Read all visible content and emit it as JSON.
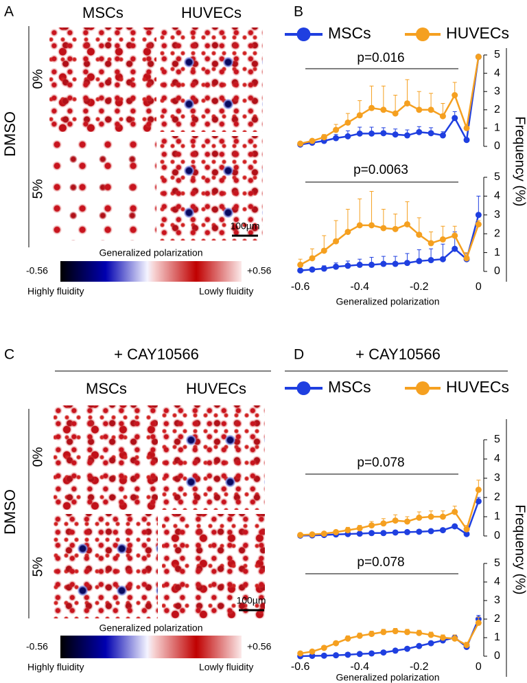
{
  "panel_a": {
    "letter": "A",
    "columns": [
      "MSCs",
      "HUVECs"
    ],
    "group": "DMSO",
    "rows": [
      "0%",
      "5%"
    ],
    "scale_bar": "100µm",
    "colorbar": {
      "title": "Generalized polarization",
      "min": "-0.56",
      "max": "+0.56",
      "low": "Highly fluidity",
      "high": "Lowly fluidity"
    }
  },
  "panel_b": {
    "letter": "B"
  },
  "panel_c": {
    "letter": "C",
    "treatment": "+ CAY10566",
    "columns": [
      "MSCs",
      "HUVECs"
    ],
    "group": "DMSO",
    "rows": [
      "0%",
      "5%"
    ],
    "scale_bar": "100µm",
    "colorbar": {
      "title": "Generalized polarization",
      "min": "-0.56",
      "max": "+0.56",
      "low": "Highly fluidity",
      "high": "Lowly fluidity"
    }
  },
  "panel_d": {
    "letter": "D",
    "treatment": "+ CAY10566"
  },
  "chart_data": [
    {
      "type": "line",
      "annotation": "p=0.016",
      "y_label": "Frequency (%)",
      "x": [
        -0.6,
        -0.56,
        -0.52,
        -0.48,
        -0.44,
        -0.4,
        -0.36,
        -0.32,
        -0.28,
        -0.24,
        -0.2,
        -0.16,
        -0.12,
        -0.08,
        -0.04,
        0
      ],
      "xlim": [
        -0.62,
        0.02
      ],
      "ylim": [
        0,
        5
      ],
      "yticks": [
        0,
        1,
        2,
        3,
        4,
        5
      ],
      "series": [
        {
          "name": "MSCs",
          "color": "#1f3fe0",
          "values": [
            0.1,
            0.2,
            0.3,
            0.45,
            0.55,
            0.7,
            0.7,
            0.72,
            0.65,
            0.6,
            0.78,
            0.72,
            0.6,
            1.55,
            0.35,
            4.9
          ],
          "errors": [
            0.05,
            0.1,
            0.15,
            0.2,
            0.3,
            0.35,
            0.35,
            0.3,
            0.3,
            0.3,
            0.3,
            0.3,
            0.2,
            0.35,
            0.1,
            0.1
          ]
        },
        {
          "name": "HUVECs",
          "color": "#f5a020",
          "values": [
            0.15,
            0.3,
            0.5,
            0.9,
            1.3,
            1.7,
            2.1,
            2.0,
            1.8,
            2.35,
            2.0,
            2.0,
            1.65,
            2.8,
            1.0,
            4.9
          ],
          "errors": [
            0.05,
            0.1,
            0.15,
            0.3,
            0.5,
            0.8,
            1.2,
            1.3,
            1.0,
            1.3,
            1.0,
            0.9,
            0.7,
            0.7,
            0.2,
            0.1
          ]
        }
      ]
    },
    {
      "type": "line",
      "annotation": "p=0.0063",
      "x_label": "Generalized polarization",
      "x": [
        -0.6,
        -0.56,
        -0.52,
        -0.48,
        -0.44,
        -0.4,
        -0.36,
        -0.32,
        -0.28,
        -0.24,
        -0.2,
        -0.16,
        -0.12,
        -0.08,
        -0.04,
        0
      ],
      "xlim": [
        -0.62,
        0.02
      ],
      "xticks": [
        -0.6,
        -0.4,
        -0.2,
        0
      ],
      "ylim": [
        0,
        5
      ],
      "yticks": [
        0,
        1,
        2,
        3,
        4,
        5
      ],
      "series": [
        {
          "color": "#1f3fe0",
          "values": [
            0.05,
            0.1,
            0.15,
            0.25,
            0.3,
            0.35,
            0.35,
            0.4,
            0.4,
            0.45,
            0.55,
            0.6,
            0.65,
            1.2,
            0.65,
            3.0
          ],
          "errors": [
            0.05,
            0.1,
            0.15,
            0.2,
            0.25,
            0.3,
            0.4,
            0.4,
            0.4,
            0.5,
            0.6,
            0.6,
            0.8,
            0.9,
            0.3,
            1.0
          ]
        },
        {
          "color": "#f5a020",
          "values": [
            0.35,
            0.7,
            1.1,
            1.6,
            2.1,
            2.45,
            2.45,
            2.3,
            2.25,
            2.5,
            1.95,
            1.5,
            1.7,
            1.9,
            0.7,
            2.5
          ],
          "errors": [
            0.3,
            0.5,
            0.8,
            1.1,
            1.2,
            1.4,
            1.8,
            1.0,
            0.8,
            1.2,
            0.9,
            0.6,
            0.7,
            0.5,
            0.3,
            0.2
          ]
        }
      ]
    },
    {
      "type": "line",
      "annotation": "p=0.078",
      "y_label": "Frequency (%)",
      "x": [
        -0.6,
        -0.56,
        -0.52,
        -0.48,
        -0.44,
        -0.4,
        -0.36,
        -0.32,
        -0.28,
        -0.24,
        -0.2,
        -0.16,
        -0.12,
        -0.08,
        -0.04,
        0
      ],
      "xlim": [
        -0.62,
        0.02
      ],
      "ylim": [
        0,
        5
      ],
      "yticks": [
        0,
        1,
        2,
        3,
        4,
        5
      ],
      "series": [
        {
          "name": "MSCs",
          "color": "#1f3fe0",
          "values": [
            0.02,
            0.03,
            0.05,
            0.08,
            0.1,
            0.12,
            0.15,
            0.15,
            0.18,
            0.2,
            0.22,
            0.25,
            0.3,
            0.5,
            0.1,
            1.8
          ],
          "errors": [
            0.02,
            0.02,
            0.03,
            0.03,
            0.05,
            0.05,
            0.05,
            0.05,
            0.05,
            0.05,
            0.05,
            0.05,
            0.05,
            0.1,
            0.05,
            0.2
          ]
        },
        {
          "name": "HUVECs",
          "color": "#f5a020",
          "values": [
            0.05,
            0.08,
            0.12,
            0.2,
            0.3,
            0.4,
            0.55,
            0.65,
            0.8,
            0.75,
            0.95,
            1.0,
            1.0,
            1.25,
            0.35,
            2.4
          ],
          "errors": [
            0.02,
            0.05,
            0.08,
            0.1,
            0.15,
            0.15,
            0.2,
            0.25,
            0.3,
            0.25,
            0.3,
            0.3,
            0.3,
            0.3,
            0.2,
            0.5
          ]
        }
      ]
    },
    {
      "type": "line",
      "annotation": "p=0.078",
      "x_label": "Generalized polarization",
      "x": [
        -0.6,
        -0.56,
        -0.52,
        -0.48,
        -0.44,
        -0.4,
        -0.36,
        -0.32,
        -0.28,
        -0.24,
        -0.2,
        -0.16,
        -0.12,
        -0.08,
        -0.04,
        0
      ],
      "xlim": [
        -0.62,
        0.02
      ],
      "xticks": [
        -0.6,
        -0.4,
        -0.2,
        0
      ],
      "ylim": [
        0,
        5
      ],
      "yticks": [
        0,
        1,
        2,
        3,
        4,
        5
      ],
      "series": [
        {
          "color": "#1f3fe0",
          "values": [
            0.0,
            0.02,
            0.03,
            0.05,
            0.08,
            0.12,
            0.15,
            0.2,
            0.3,
            0.4,
            0.55,
            0.7,
            0.85,
            1.0,
            0.5,
            2.0
          ],
          "errors": [
            0.02,
            0.1,
            0.1,
            0.1,
            0.1,
            0.1,
            0.1,
            0.1,
            0.1,
            0.1,
            0.1,
            0.1,
            0.1,
            0.1,
            0.1,
            0.2
          ]
        },
        {
          "color": "#f5a020",
          "values": [
            0.15,
            0.25,
            0.45,
            0.7,
            0.95,
            1.1,
            1.2,
            1.3,
            1.35,
            1.3,
            1.25,
            1.15,
            1.0,
            0.95,
            0.6,
            1.8
          ],
          "errors": [
            0.05,
            0.1,
            0.1,
            0.1,
            0.15,
            0.15,
            0.15,
            0.15,
            0.15,
            0.15,
            0.15,
            0.15,
            0.15,
            0.2,
            0.15,
            0.3
          ]
        }
      ]
    }
  ]
}
